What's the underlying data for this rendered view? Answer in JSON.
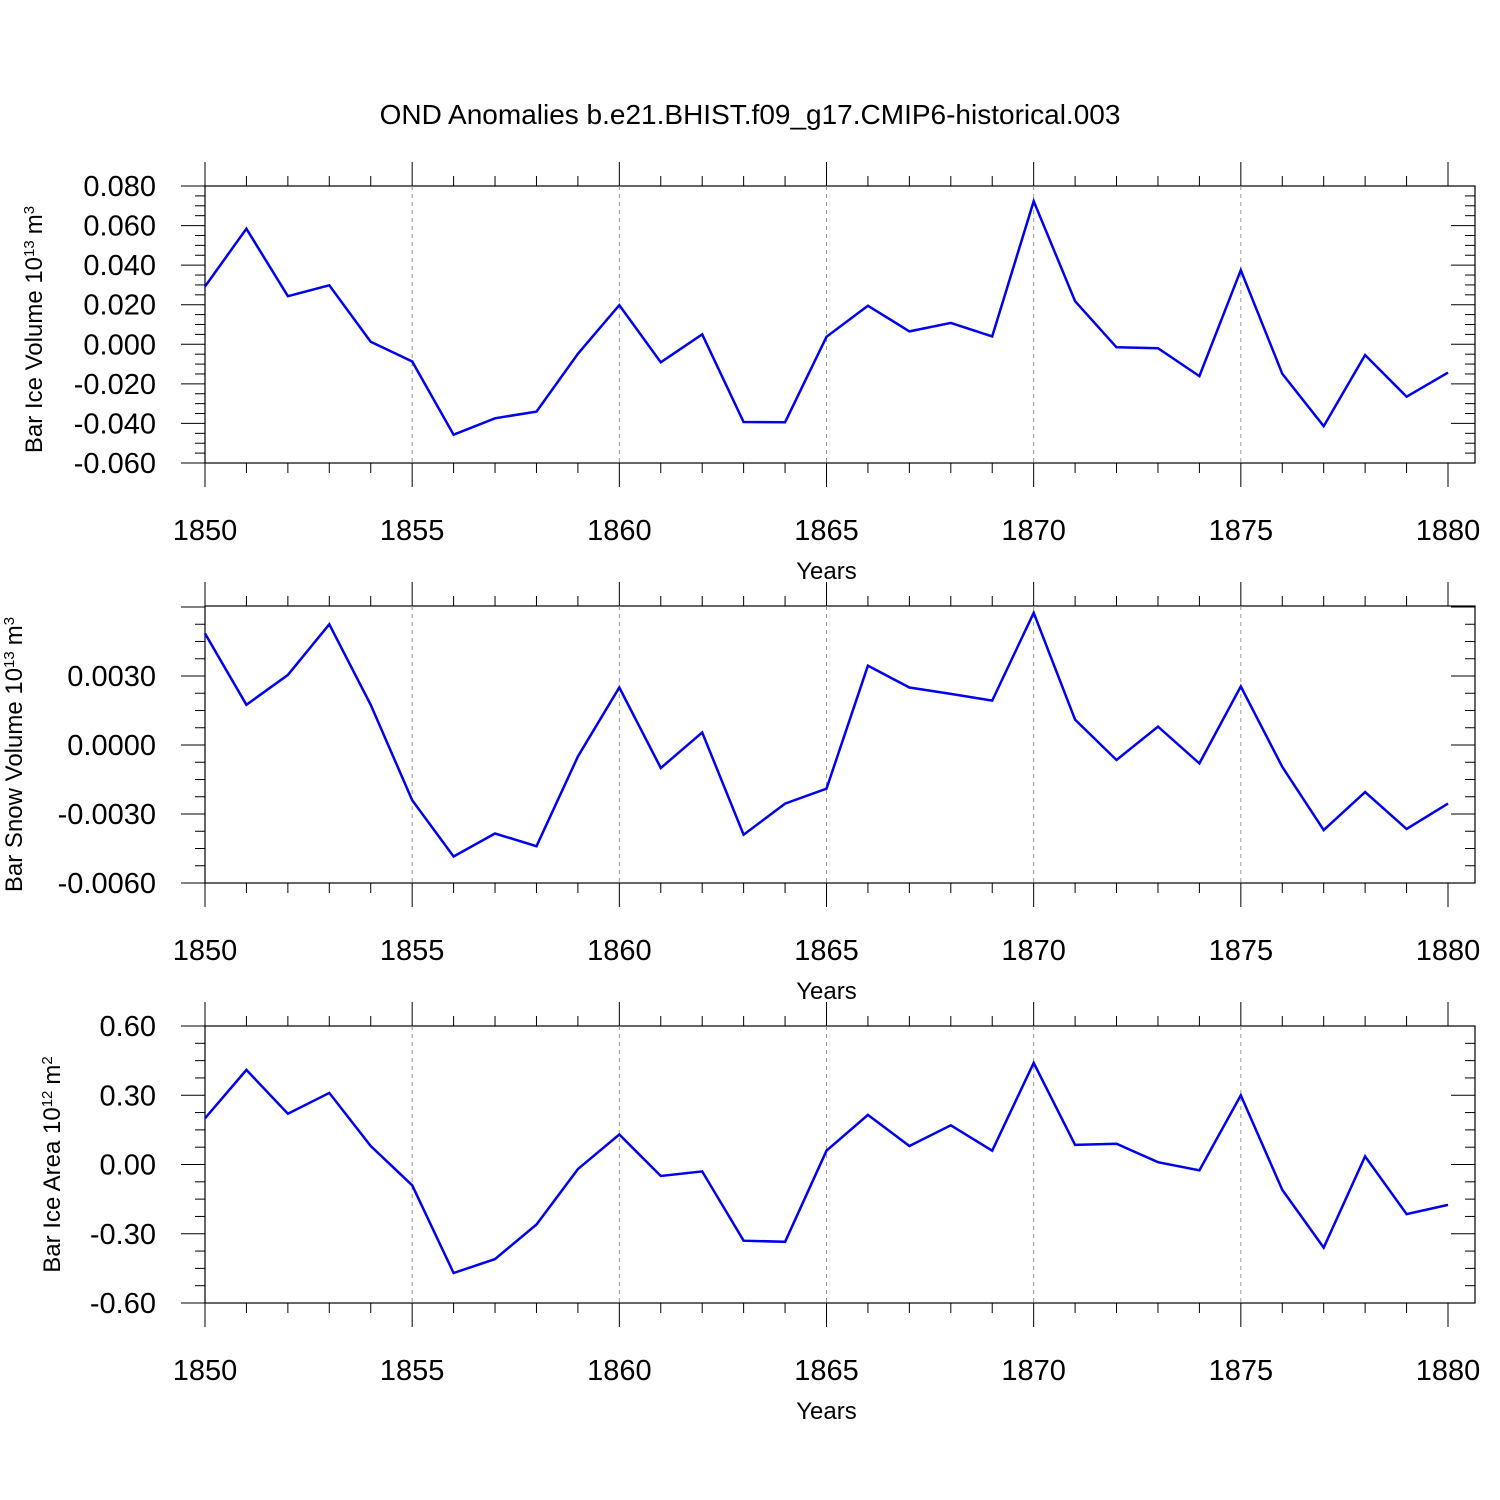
{
  "title": "OND Anomalies b.e21.BHIST.f09_g17.CMIP6-historical.003",
  "colors": {
    "series": "#0000ee",
    "grid": "#999999",
    "axis": "#000000"
  },
  "chart_data": [
    {
      "type": "line",
      "ylabel_main": "Bar Ice Volume 10",
      "ylabel_exp": "13",
      "ylabel_unit": "m",
      "ylabel_unit_exp": "3",
      "xlabel": "Years",
      "xlim": [
        1850,
        1880
      ],
      "ylim": [
        -0.06,
        0.08
      ],
      "yticks": [
        -0.06,
        -0.04,
        -0.02,
        0.0,
        0.02,
        0.04,
        0.06,
        0.08
      ],
      "yticklabels": [
        "-0.060",
        "-0.040",
        "-0.020",
        "0.000",
        "0.020",
        "0.040",
        "0.060",
        "0.080"
      ],
      "xticks": [
        1850,
        1855,
        1860,
        1865,
        1870,
        1875,
        1880
      ],
      "xticklabels": [
        "1850",
        "1855",
        "1860",
        "1865",
        "1870",
        "1875",
        "1880"
      ],
      "grid": "dashed vertical at 1855, 1860, 1865, 1870, 1875",
      "x": [
        1850,
        1851,
        1852,
        1853,
        1854,
        1855,
        1856,
        1857,
        1858,
        1859,
        1860,
        1861,
        1862,
        1863,
        1864,
        1865,
        1866,
        1867,
        1868,
        1869,
        1870,
        1871,
        1872,
        1873,
        1874,
        1875,
        1876,
        1877,
        1878,
        1879,
        1880
      ],
      "values": [
        0.0292,
        0.0584,
        0.0243,
        0.0298,
        0.0013,
        -0.0087,
        -0.0457,
        -0.0374,
        -0.034,
        -0.0048,
        0.0198,
        -0.0091,
        0.005,
        -0.0393,
        -0.0394,
        0.0038,
        0.0195,
        0.0065,
        0.0108,
        0.004,
        0.0723,
        0.0218,
        -0.0015,
        -0.002,
        -0.0161,
        0.0375,
        -0.0149,
        -0.0414,
        -0.0054,
        -0.0265,
        -0.0143
      ]
    },
    {
      "type": "line",
      "ylabel_main": "Bar Snow Volume 10",
      "ylabel_exp": "13",
      "ylabel_unit": "m",
      "ylabel_unit_exp": "3",
      "xlabel": "Years",
      "xlim": [
        1850,
        1880
      ],
      "ylim": [
        -0.006,
        0.006
      ],
      "yticks": [
        -0.006,
        -0.003,
        0.0,
        0.003
      ],
      "yticklabels": [
        "-0.0060",
        "-0.0030",
        "0.0000",
        "0.0030"
      ],
      "xticks": [
        1850,
        1855,
        1860,
        1865,
        1870,
        1875,
        1880
      ],
      "xticklabels": [
        "1850",
        "1855",
        "1860",
        "1865",
        "1870",
        "1875",
        "1880"
      ],
      "grid": "dashed vertical at 1855, 1860, 1865, 1870, 1875",
      "x": [
        1850,
        1851,
        1852,
        1853,
        1854,
        1855,
        1856,
        1857,
        1858,
        1859,
        1860,
        1861,
        1862,
        1863,
        1864,
        1865,
        1866,
        1867,
        1868,
        1869,
        1870,
        1871,
        1872,
        1873,
        1874,
        1875,
        1876,
        1877,
        1878,
        1879,
        1880
      ],
      "values": [
        0.00485,
        0.00175,
        0.00305,
        0.00525,
        0.00175,
        -0.0024,
        -0.00485,
        -0.00385,
        -0.0044,
        -0.0005,
        0.0025,
        -0.001,
        0.00055,
        -0.0039,
        -0.00255,
        -0.0019,
        0.00345,
        0.0025,
        0.00222,
        0.00193,
        0.00575,
        0.0011,
        -0.00065,
        0.0008,
        -0.0008,
        0.00255,
        -0.00095,
        -0.0037,
        -0.00205,
        -0.00365,
        -0.00255
      ]
    },
    {
      "type": "line",
      "ylabel_main": "Bar Ice Area 10",
      "ylabel_exp": "12",
      "ylabel_unit": "m",
      "ylabel_unit_exp": "2",
      "xlabel": "Years",
      "xlim": [
        1850,
        1880
      ],
      "ylim": [
        -0.6,
        0.6
      ],
      "yticks": [
        -0.6,
        -0.3,
        0.0,
        0.3,
        0.6
      ],
      "yticklabels": [
        "-0.60",
        "-0.30",
        "0.00",
        "0.30",
        "0.60"
      ],
      "xticks": [
        1850,
        1855,
        1860,
        1865,
        1870,
        1875,
        1880
      ],
      "xticklabels": [
        "1850",
        "1855",
        "1860",
        "1865",
        "1870",
        "1875",
        "1880"
      ],
      "grid": "dashed vertical at 1855, 1860, 1865, 1870, 1875",
      "x": [
        1850,
        1851,
        1852,
        1853,
        1854,
        1855,
        1856,
        1857,
        1858,
        1859,
        1860,
        1861,
        1862,
        1863,
        1864,
        1865,
        1866,
        1867,
        1868,
        1869,
        1870,
        1871,
        1872,
        1873,
        1874,
        1875,
        1876,
        1877,
        1878,
        1879,
        1880
      ],
      "values": [
        0.2,
        0.41,
        0.22,
        0.31,
        0.08,
        -0.09,
        -0.47,
        -0.41,
        -0.26,
        -0.02,
        0.13,
        -0.05,
        -0.03,
        -0.33,
        -0.335,
        0.06,
        0.215,
        0.08,
        0.17,
        0.06,
        0.44,
        0.085,
        0.09,
        0.01,
        -0.025,
        0.3,
        -0.11,
        -0.36,
        0.035,
        -0.215,
        -0.175
      ]
    }
  ]
}
